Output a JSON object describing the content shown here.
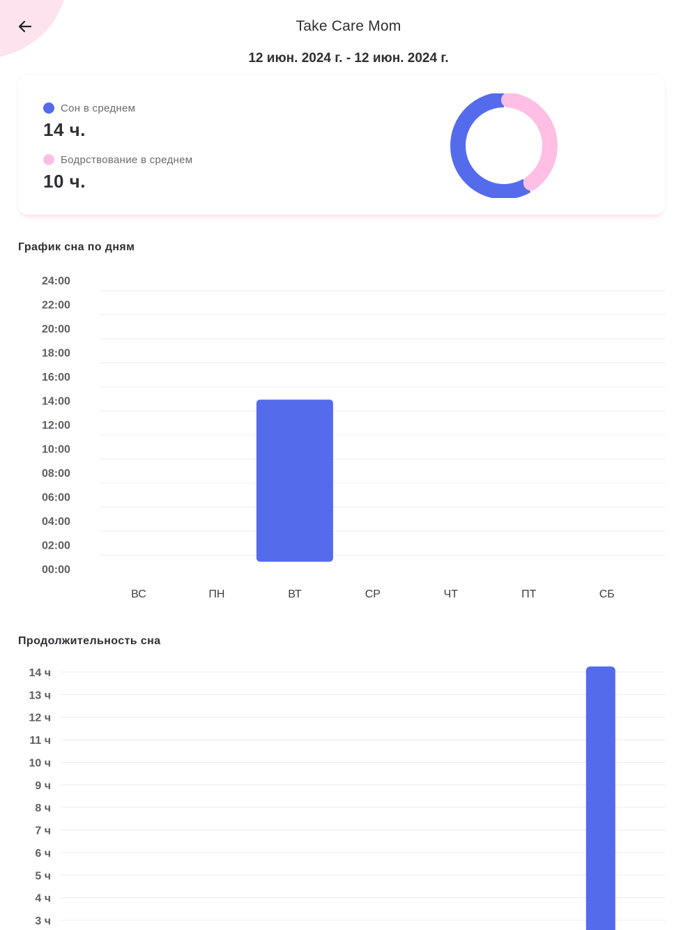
{
  "header": {
    "title": "Take Care Mom",
    "back_icon": "arrow-left-icon"
  },
  "date_range": "12 июн. 2024 г. - 12 июн. 2024 г.",
  "summary": {
    "sleep": {
      "label": "Сон в среднем",
      "value": "14 ч.",
      "hours": 14,
      "color": "#546BEC"
    },
    "awake": {
      "label": "Бодрствование  в среднем",
      "value": "10 ч.",
      "hours": 10,
      "color": "#FFBEE3"
    }
  },
  "colors": {
    "accent": "#546BEC",
    "pink": "#FFBEE3",
    "grid": "#ECECEF"
  },
  "sections": {
    "schedule_title": "График сна по дням",
    "duration_title": "Продолжительность сна"
  },
  "chart_data": [
    {
      "type": "bar",
      "subtype": "range",
      "title": "График сна по дням",
      "y_ticks": [
        "00:00",
        "02:00",
        "04:00",
        "06:00",
        "08:00",
        "10:00",
        "12:00",
        "14:00",
        "16:00",
        "18:00",
        "20:00",
        "22:00",
        "24:00"
      ],
      "ylim": [
        0,
        24
      ],
      "categories": [
        "ВС",
        "ПН",
        "ВТ",
        "СР",
        "ЧТ",
        "ПТ",
        "СБ"
      ],
      "ranges": [
        null,
        null,
        [
          1,
          15
        ],
        null,
        null,
        null,
        null
      ],
      "color": "#546BEC",
      "grid": true
    },
    {
      "type": "bar",
      "title": "Продолжительность сна",
      "y_ticks": [
        "3 ч",
        "4 ч",
        "5 ч",
        "6 ч",
        "7 ч",
        "8 ч",
        "9 ч",
        "10 ч",
        "11 ч",
        "12 ч",
        "13 ч",
        "14 ч"
      ],
      "ylim_visible": [
        3,
        14
      ],
      "values": [
        0,
        0,
        0,
        0,
        0,
        0,
        14
      ],
      "color": "#546BEC",
      "grid": true
    }
  ]
}
